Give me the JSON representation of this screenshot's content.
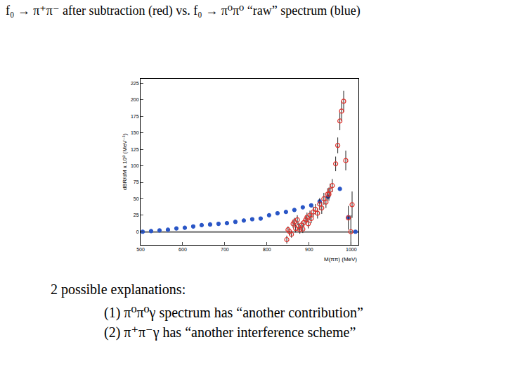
{
  "slide": {
    "title": "f₀ → π⁺π⁻ after subtraction (red)  vs. f₀ → π⁰π⁰ “raw” spectrum (blue)",
    "notes": {
      "heading": "2 possible explanations:",
      "items": [
        "(1) π⁰π⁰γ spectrum has “another contribution”",
        "(2) π⁺π⁻γ has “another interference scheme”"
      ]
    }
  },
  "chart_data": {
    "type": "scatter",
    "x_label": "M(ππ) (MeV)",
    "y_label": "dBR/dM x 10⁸ (MeV⁻¹)",
    "xlim": [
      500,
      1017
    ],
    "xticks": [
      500,
      600,
      700,
      800,
      900,
      1000
    ],
    "ylim": [
      -20,
      232
    ],
    "yticks": [
      0,
      25,
      50,
      75,
      100,
      125,
      150,
      175,
      200,
      225
    ],
    "grid": false,
    "series": [
      {
        "color": "#2a56c6",
        "marker": "circle",
        "x": [
          505,
          525,
          545,
          565,
          585,
          605,
          625,
          645,
          665,
          685,
          705,
          725,
          745,
          765,
          785,
          805,
          825,
          845,
          865,
          885,
          905,
          925,
          945,
          973,
          993,
          1010
        ],
        "values": [
          0,
          1,
          2,
          3,
          5,
          6,
          8,
          10,
          11,
          12,
          13,
          15,
          17,
          19,
          20,
          25,
          28,
          30,
          33,
          37,
          40,
          46,
          53,
          65,
          22,
          0
        ]
      },
      {
        "color": "#e0302a",
        "marker": "circle-open",
        "x": [
          847,
          850,
          854,
          858,
          862,
          865,
          868,
          872,
          875,
          878,
          882,
          885,
          888,
          892,
          895,
          898,
          902,
          905,
          910,
          915,
          920,
          925,
          930,
          935,
          940,
          944,
          947,
          950,
          955,
          963,
          968,
          973,
          977,
          982,
          987,
          993,
          999,
          1002
        ],
        "values": [
          -12,
          3,
          0,
          -4,
          12,
          15,
          5,
          18,
          8,
          3,
          10,
          4,
          14,
          18,
          22,
          12,
          25,
          20,
          30,
          34,
          28,
          42,
          36,
          50,
          45,
          57,
          57,
          63,
          70,
          103,
          131,
          168,
          183,
          198,
          108,
          21,
          0,
          41
        ],
        "errors": [
          6,
          5,
          5,
          5,
          6,
          6,
          6,
          7,
          6,
          6,
          6,
          6,
          6,
          6,
          7,
          7,
          7,
          7,
          8,
          8,
          8,
          9,
          9,
          9,
          9,
          9,
          10,
          10,
          10,
          11,
          12,
          14,
          15,
          16,
          15,
          18,
          25,
          20
        ]
      }
    ]
  }
}
